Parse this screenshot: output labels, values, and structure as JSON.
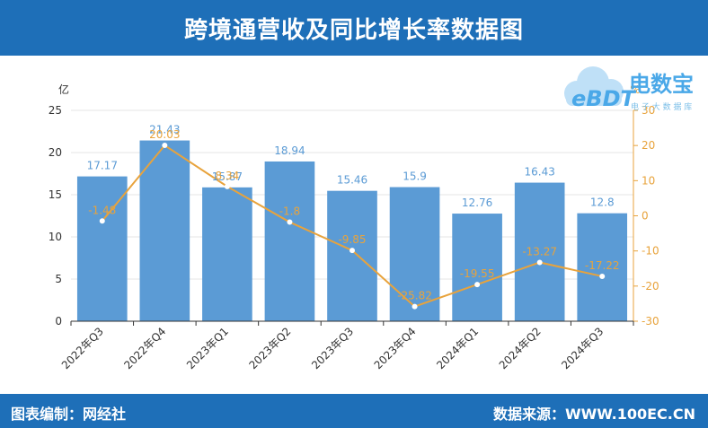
{
  "header": {
    "title": "跨境通营收及同比增长率数据图"
  },
  "footer": {
    "left": "图表编制：网经社",
    "right": "数据来源：WWW.100EC.CN"
  },
  "logo": {
    "name": "电数宝",
    "sub": "电 子 大 数 据 库",
    "mark": "eBDT"
  },
  "chart_data": {
    "type": "bar+line",
    "categories": [
      "2022年Q3",
      "2022年Q4",
      "2023年Q1",
      "2023年Q2",
      "2023年Q3",
      "2023年Q4",
      "2024年Q1",
      "2024年Q2",
      "2024年Q3"
    ],
    "series": [
      {
        "values": [
          17.17,
          21.43,
          15.87,
          18.94,
          15.46,
          15.9,
          12.76,
          16.43,
          12.8
        ],
        "axis": "left",
        "color": "#5b9bd5"
      },
      {
        "values": [
          -1.48,
          20.03,
          8.34,
          -1.8,
          -9.85,
          -25.82,
          -19.55,
          -13.27,
          -17.22
        ],
        "axis": "right",
        "color": "#e8a33c"
      }
    ],
    "y_left": {
      "label": "亿",
      "min": 0,
      "max": 25,
      "ticks": [
        0,
        5,
        10,
        15,
        20,
        25
      ]
    },
    "y_right": {
      "label": "%",
      "min": -30,
      "max": 30,
      "ticks": [
        -30,
        -20,
        -10,
        0,
        10,
        20,
        30
      ]
    },
    "bar_color": "#5b9bd5",
    "line_color": "#e8a33c",
    "grid": true
  }
}
